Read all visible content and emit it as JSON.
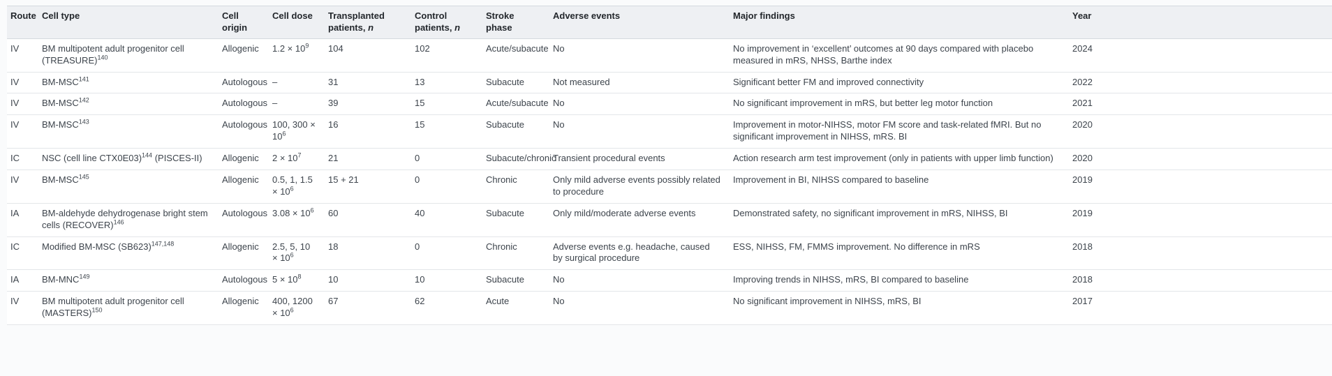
{
  "colors": {
    "page_background": "#fafbfc",
    "header_background": "#eef0f3",
    "header_text": "#23272c",
    "body_text": "#3d444c",
    "header_border": "#d5d9de",
    "row_border": "#e3e6e9"
  },
  "table": {
    "columns": [
      {
        "key": "route",
        "label": "Route",
        "sub": ""
      },
      {
        "key": "cell_type",
        "label": "Cell type",
        "sub": ""
      },
      {
        "key": "cell_origin",
        "label": "Cell origin",
        "sub": ""
      },
      {
        "key": "cell_dose",
        "label": "Cell dose",
        "sub": ""
      },
      {
        "key": "transplanted",
        "label": "Transplanted patients,",
        "sub": "n"
      },
      {
        "key": "control",
        "label": "Control patients,",
        "sub": "n"
      },
      {
        "key": "stroke_phase",
        "label": "Stroke phase",
        "sub": ""
      },
      {
        "key": "adverse",
        "label": "Adverse events",
        "sub": ""
      },
      {
        "key": "findings",
        "label": "Major findings",
        "sub": ""
      },
      {
        "key": "year",
        "label": "Year",
        "sub": ""
      }
    ],
    "rows": [
      {
        "route": "IV",
        "cell_type": {
          "pre": "BM multipotent adult progenitor cell (TREASURE)",
          "ref": "140",
          "post": ""
        },
        "cell_origin": "Allogenic",
        "cell_dose": {
          "main": "1.2 × 10",
          "sup": "9"
        },
        "transplanted": "104",
        "control": "102",
        "stroke_phase": "Acute/subacute",
        "adverse": "No",
        "findings": "No improvement in ‘excellent’ outcomes at 90 days compared with placebo measured in mRS, NHSS, Barthe index",
        "year": "2024"
      },
      {
        "route": "IV",
        "cell_type": {
          "pre": "BM-MSC",
          "ref": "141",
          "post": ""
        },
        "cell_origin": "Autologous",
        "cell_dose": {
          "main": "–",
          "sup": ""
        },
        "transplanted": "31",
        "control": "13",
        "stroke_phase": "Subacute",
        "adverse": "Not measured",
        "findings": "Significant better FM and improved connectivity",
        "year": "2022"
      },
      {
        "route": "IV",
        "cell_type": {
          "pre": "BM-MSC",
          "ref": "142",
          "post": ""
        },
        "cell_origin": "Autologous",
        "cell_dose": {
          "main": "–",
          "sup": ""
        },
        "transplanted": "39",
        "control": "15",
        "stroke_phase": "Acute/subacute",
        "adverse": "No",
        "findings": "No significant improvement in mRS, but better leg motor function",
        "year": "2021"
      },
      {
        "route": "IV",
        "cell_type": {
          "pre": "BM-MSC",
          "ref": "143",
          "post": ""
        },
        "cell_origin": "Autologous",
        "cell_dose": {
          "main": "100, 300 × 10",
          "sup": "6"
        },
        "transplanted": "16",
        "control": "15",
        "stroke_phase": "Subacute",
        "adverse": "No",
        "findings": "Improvement in motor-NIHSS, motor FM score and task-related fMRI. But no significant improvement in NIHSS, mRS. BI",
        "year": "2020"
      },
      {
        "route": "IC",
        "cell_type": {
          "pre": "NSC (cell line CTX0E03)",
          "ref": "144",
          "post": " (PISCES-II)"
        },
        "cell_origin": "Allogenic",
        "cell_dose": {
          "main": "2 × 10",
          "sup": "7"
        },
        "transplanted": "21",
        "control": "0",
        "stroke_phase": "Subacute/chronic",
        "adverse": "Transient procedural events",
        "findings": "Action research arm test improvement (only in patients with upper limb function)",
        "year": "2020"
      },
      {
        "route": "IV",
        "cell_type": {
          "pre": "BM-MSC",
          "ref": "145",
          "post": ""
        },
        "cell_origin": "Allogenic",
        "cell_dose": {
          "main": "0.5, 1, 1.5 × 10",
          "sup": "6"
        },
        "transplanted": "15 + 21",
        "control": "0",
        "stroke_phase": "Chronic",
        "adverse": "Only mild adverse events possibly related to procedure",
        "findings": "Improvement in BI, NIHSS compared to baseline",
        "year": "2019"
      },
      {
        "route": "IA",
        "cell_type": {
          "pre": "BM-aldehyde dehydrogenase bright stem cells (RECOVER)",
          "ref": "146",
          "post": ""
        },
        "cell_origin": "Autologous",
        "cell_dose": {
          "main": "3.08 × 10",
          "sup": "6"
        },
        "transplanted": "60",
        "control": "40",
        "stroke_phase": "Subacute",
        "adverse": "Only mild/moderate adverse events",
        "findings": "Demonstrated safety, no significant improvement in mRS, NIHSS, BI",
        "year": "2019"
      },
      {
        "route": "IC",
        "cell_type": {
          "pre": "Modified BM-MSC (SB623)",
          "ref": "147,148",
          "post": ""
        },
        "cell_origin": "Allogenic",
        "cell_dose": {
          "main": "2.5, 5, 10 × 10",
          "sup": "6"
        },
        "transplanted": "18",
        "control": "0",
        "stroke_phase": "Chronic",
        "adverse": "Adverse events e.g. headache, caused by surgical procedure",
        "findings": "ESS, NIHSS, FM, FMMS improvement. No difference in mRS",
        "year": "2018"
      },
      {
        "route": "IA",
        "cell_type": {
          "pre": "BM-MNC",
          "ref": "149",
          "post": ""
        },
        "cell_origin": "Autologous",
        "cell_dose": {
          "main": "5 × 10",
          "sup": "8"
        },
        "transplanted": "10",
        "control": "10",
        "stroke_phase": "Subacute",
        "adverse": "No",
        "findings": "Improving trends in NIHSS, mRS, BI compared to baseline",
        "year": "2018"
      },
      {
        "route": "IV",
        "cell_type": {
          "pre": "BM multipotent adult progenitor cell (MASTERS)",
          "ref": "150",
          "post": ""
        },
        "cell_origin": "Allogenic",
        "cell_dose": {
          "main": "400, 1200 × 10",
          "sup": "6"
        },
        "transplanted": "67",
        "control": "62",
        "stroke_phase": "Acute",
        "adverse": "No",
        "findings": "No significant improvement in NIHSS, mRS, BI",
        "year": "2017"
      }
    ]
  }
}
